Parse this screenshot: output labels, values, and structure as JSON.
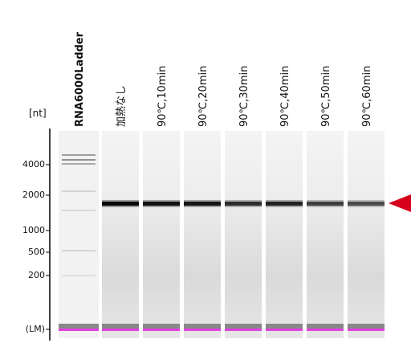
{
  "axis": {
    "unit": "[nt]",
    "ticks": [
      "4000",
      "2000",
      "1000",
      "500",
      "200",
      "(LM)"
    ]
  },
  "lanes": [
    "RNA6000Ladder",
    "加熱なし",
    "90℃,10min",
    "90℃,20min",
    "90℃,30min",
    "90℃,40min",
    "90℃,50min",
    "90℃,60min"
  ]
}
